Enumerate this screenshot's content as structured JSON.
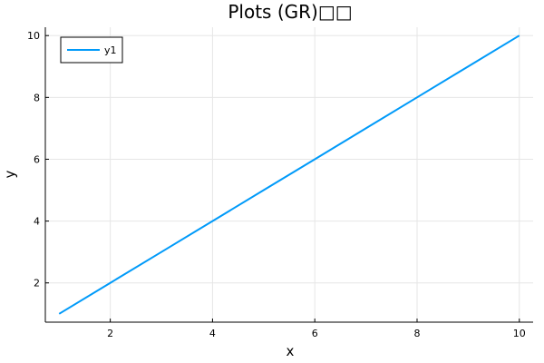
{
  "chart_data": {
    "type": "line",
    "title": "Plots (GR)□□",
    "xlabel": "x",
    "ylabel": "y",
    "xlim": [
      0.73,
      10.27
    ],
    "ylim": [
      0.73,
      10.27
    ],
    "xticks": [
      2,
      4,
      6,
      8,
      10
    ],
    "yticks": [
      2,
      4,
      6,
      8,
      10
    ],
    "xtick_labels": [
      "2",
      "4",
      "6",
      "8",
      "10"
    ],
    "ytick_labels": [
      "2",
      "4",
      "6",
      "8",
      "10"
    ],
    "grid": true,
    "legend_position": "top-left",
    "series": [
      {
        "name": "y1",
        "color": "#009af9",
        "x": [
          1,
          2,
          3,
          4,
          5,
          6,
          7,
          8,
          9,
          10
        ],
        "y": [
          1,
          2,
          3,
          4,
          5,
          6,
          7,
          8,
          9,
          10
        ]
      }
    ]
  }
}
